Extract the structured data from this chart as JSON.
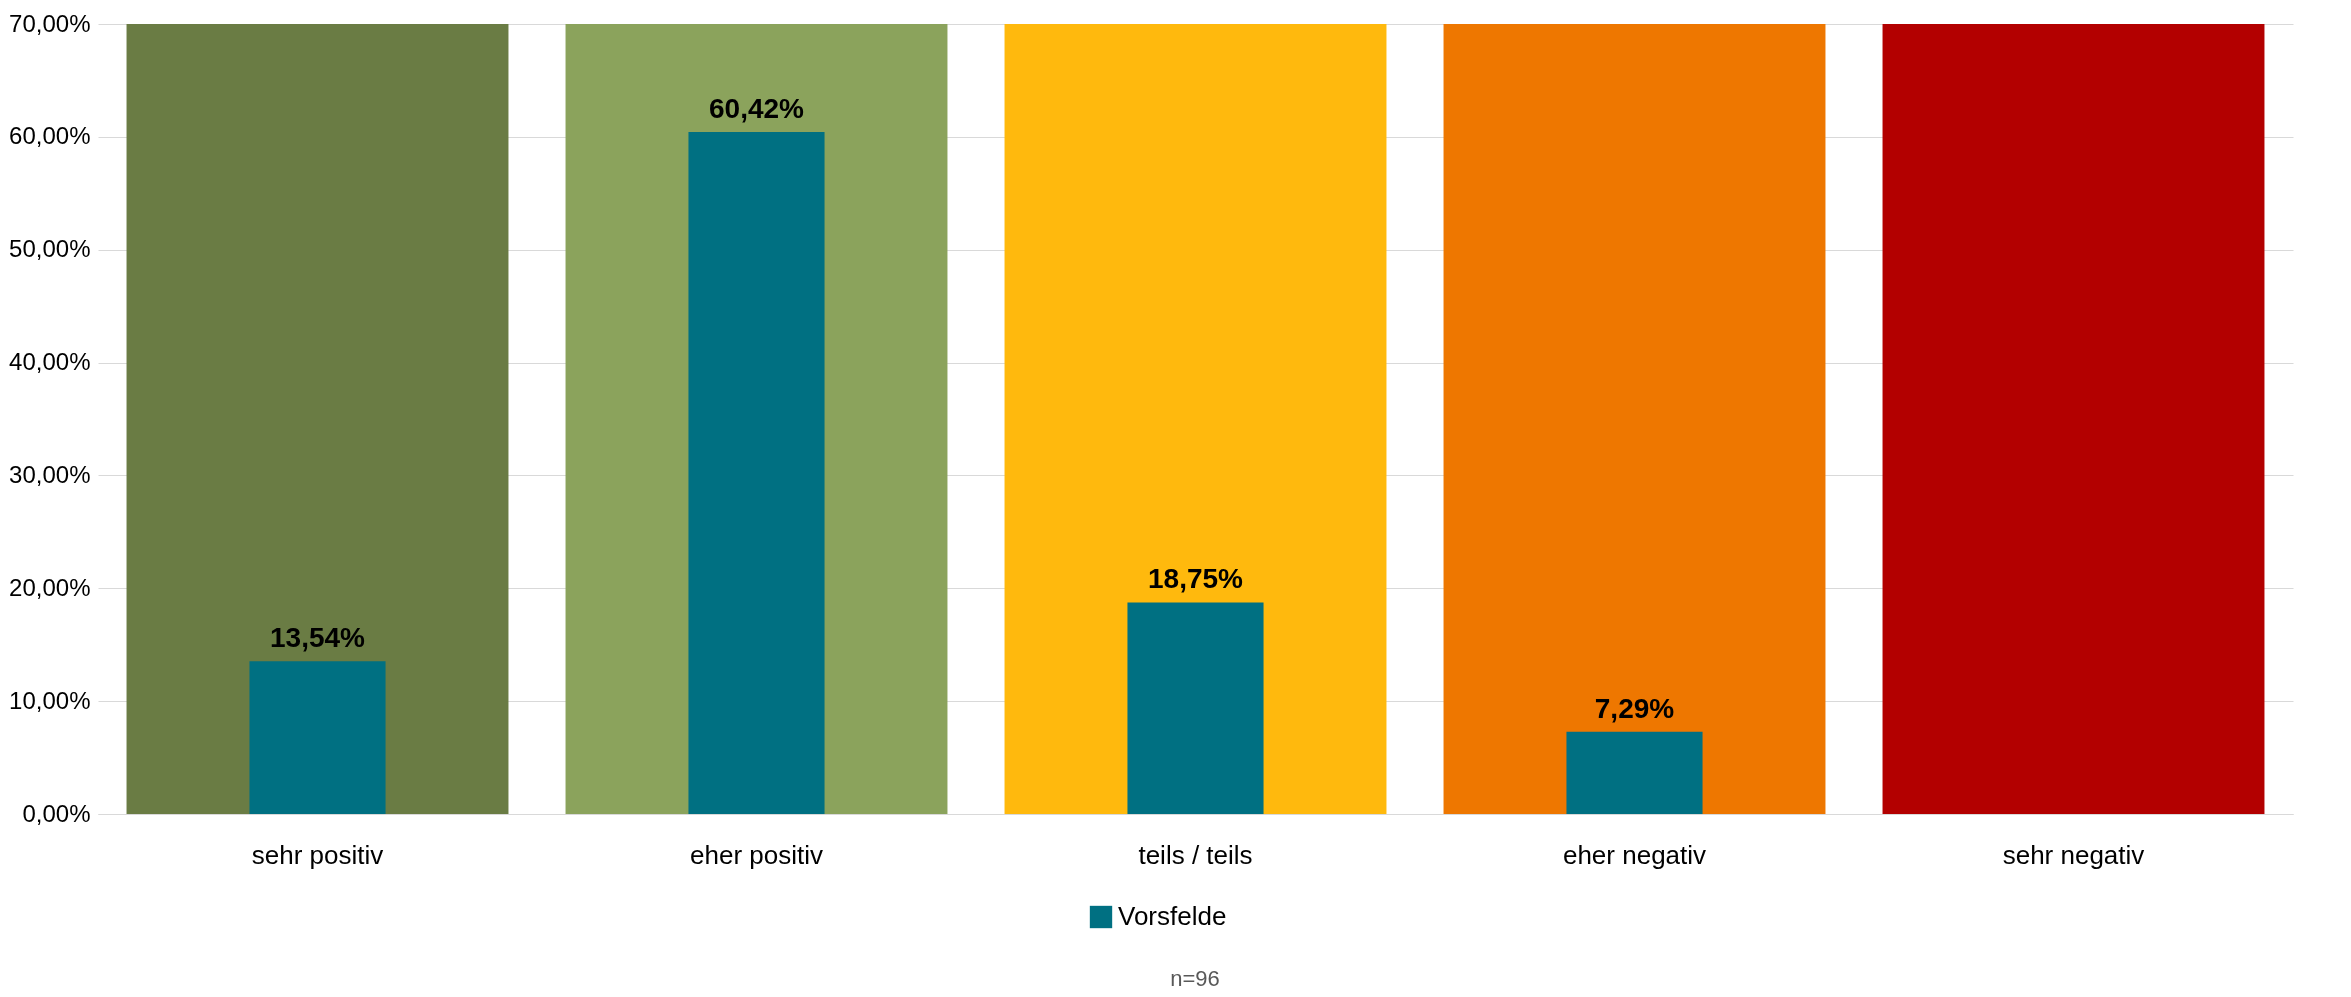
{
  "chart_data": {
    "type": "bar",
    "categories": [
      "sehr positiv",
      "eher positiv",
      "teils / teils",
      "eher negativ",
      "sehr negativ"
    ],
    "series": [
      {
        "values": [
          70,
          70,
          70,
          70,
          70
        ],
        "colors": [
          "#6a7c44",
          "#8ba35c",
          "#ffb90d",
          "#ee7700",
          "#b30000"
        ]
      },
      {
        "name": "Vorsfelde",
        "color": "#007082",
        "values": [
          13.54,
          60.42,
          18.75,
          7.29,
          null
        ],
        "value_labels": [
          "13,54%",
          "60,42%",
          "18,75%",
          "7,29%",
          null
        ]
      }
    ],
    "ylim": [
      0,
      70
    ],
    "yticks": [
      {
        "value": 0,
        "label": "0,00%"
      },
      {
        "value": 10,
        "label": "10,00%"
      },
      {
        "value": 20,
        "label": "20,00%"
      },
      {
        "value": 30,
        "label": "30,00%"
      },
      {
        "value": 40,
        "label": "40,00%"
      },
      {
        "value": 50,
        "label": "50,00%"
      },
      {
        "value": 60,
        "label": "60,00%"
      },
      {
        "value": 70,
        "label": "70,00%"
      }
    ],
    "grid": "y",
    "legend": "bottom",
    "annotations": [
      "n=96"
    ]
  }
}
